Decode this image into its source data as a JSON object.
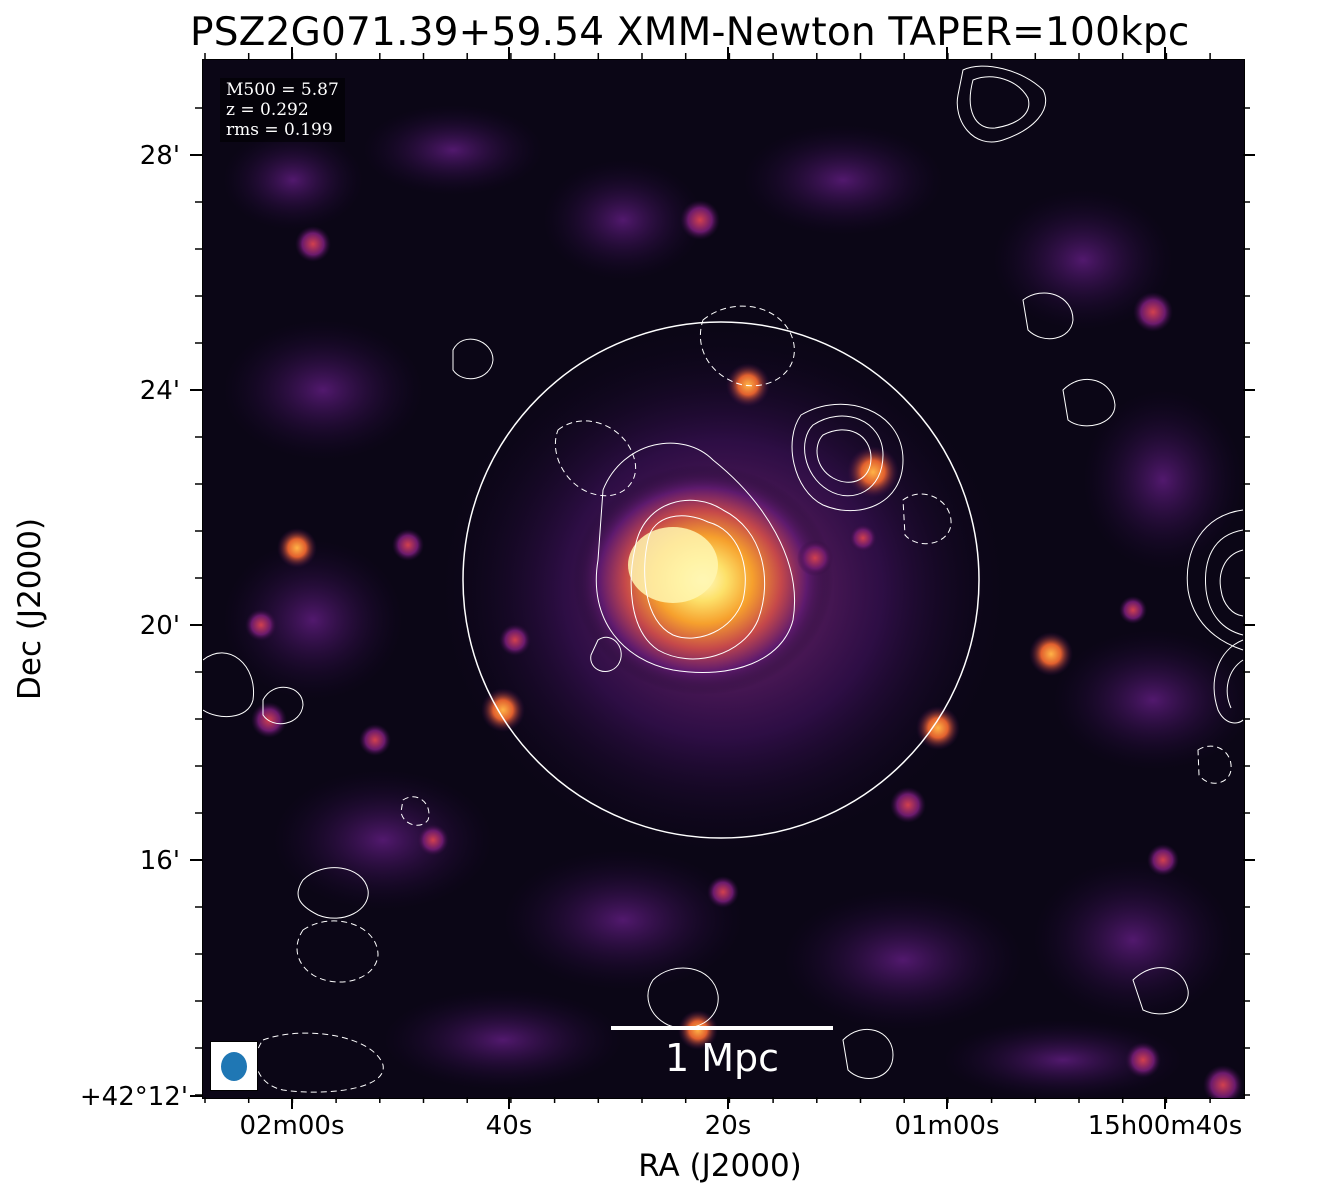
{
  "title": "PSZ2G071.39+59.54 XMM-Newton TAPER=100kpc",
  "info_box": {
    "m500": "M500 = 5.87",
    "z": "z = 0.292",
    "rms": "rms = 0.199"
  },
  "scale_bar": {
    "label": "1 Mpc"
  },
  "axes": {
    "xlabel": "RA (J2000)",
    "ylabel": "Dec (J2000)",
    "xticks": [
      "02m00s",
      "40s",
      "20s",
      "01m00s",
      "15h00m40s"
    ],
    "yticks": [
      "28'",
      "24'",
      "20'",
      "16'",
      "+42°12'"
    ]
  },
  "colors": {
    "background": "#070410",
    "core": "#fff6a8",
    "emission_mid": "#f08a2a",
    "emission_low": "#6a1d78",
    "contour": "#ffffff",
    "beam": "#1f77b4"
  },
  "icons": {
    "beam": "beam-ellipse-icon"
  }
}
